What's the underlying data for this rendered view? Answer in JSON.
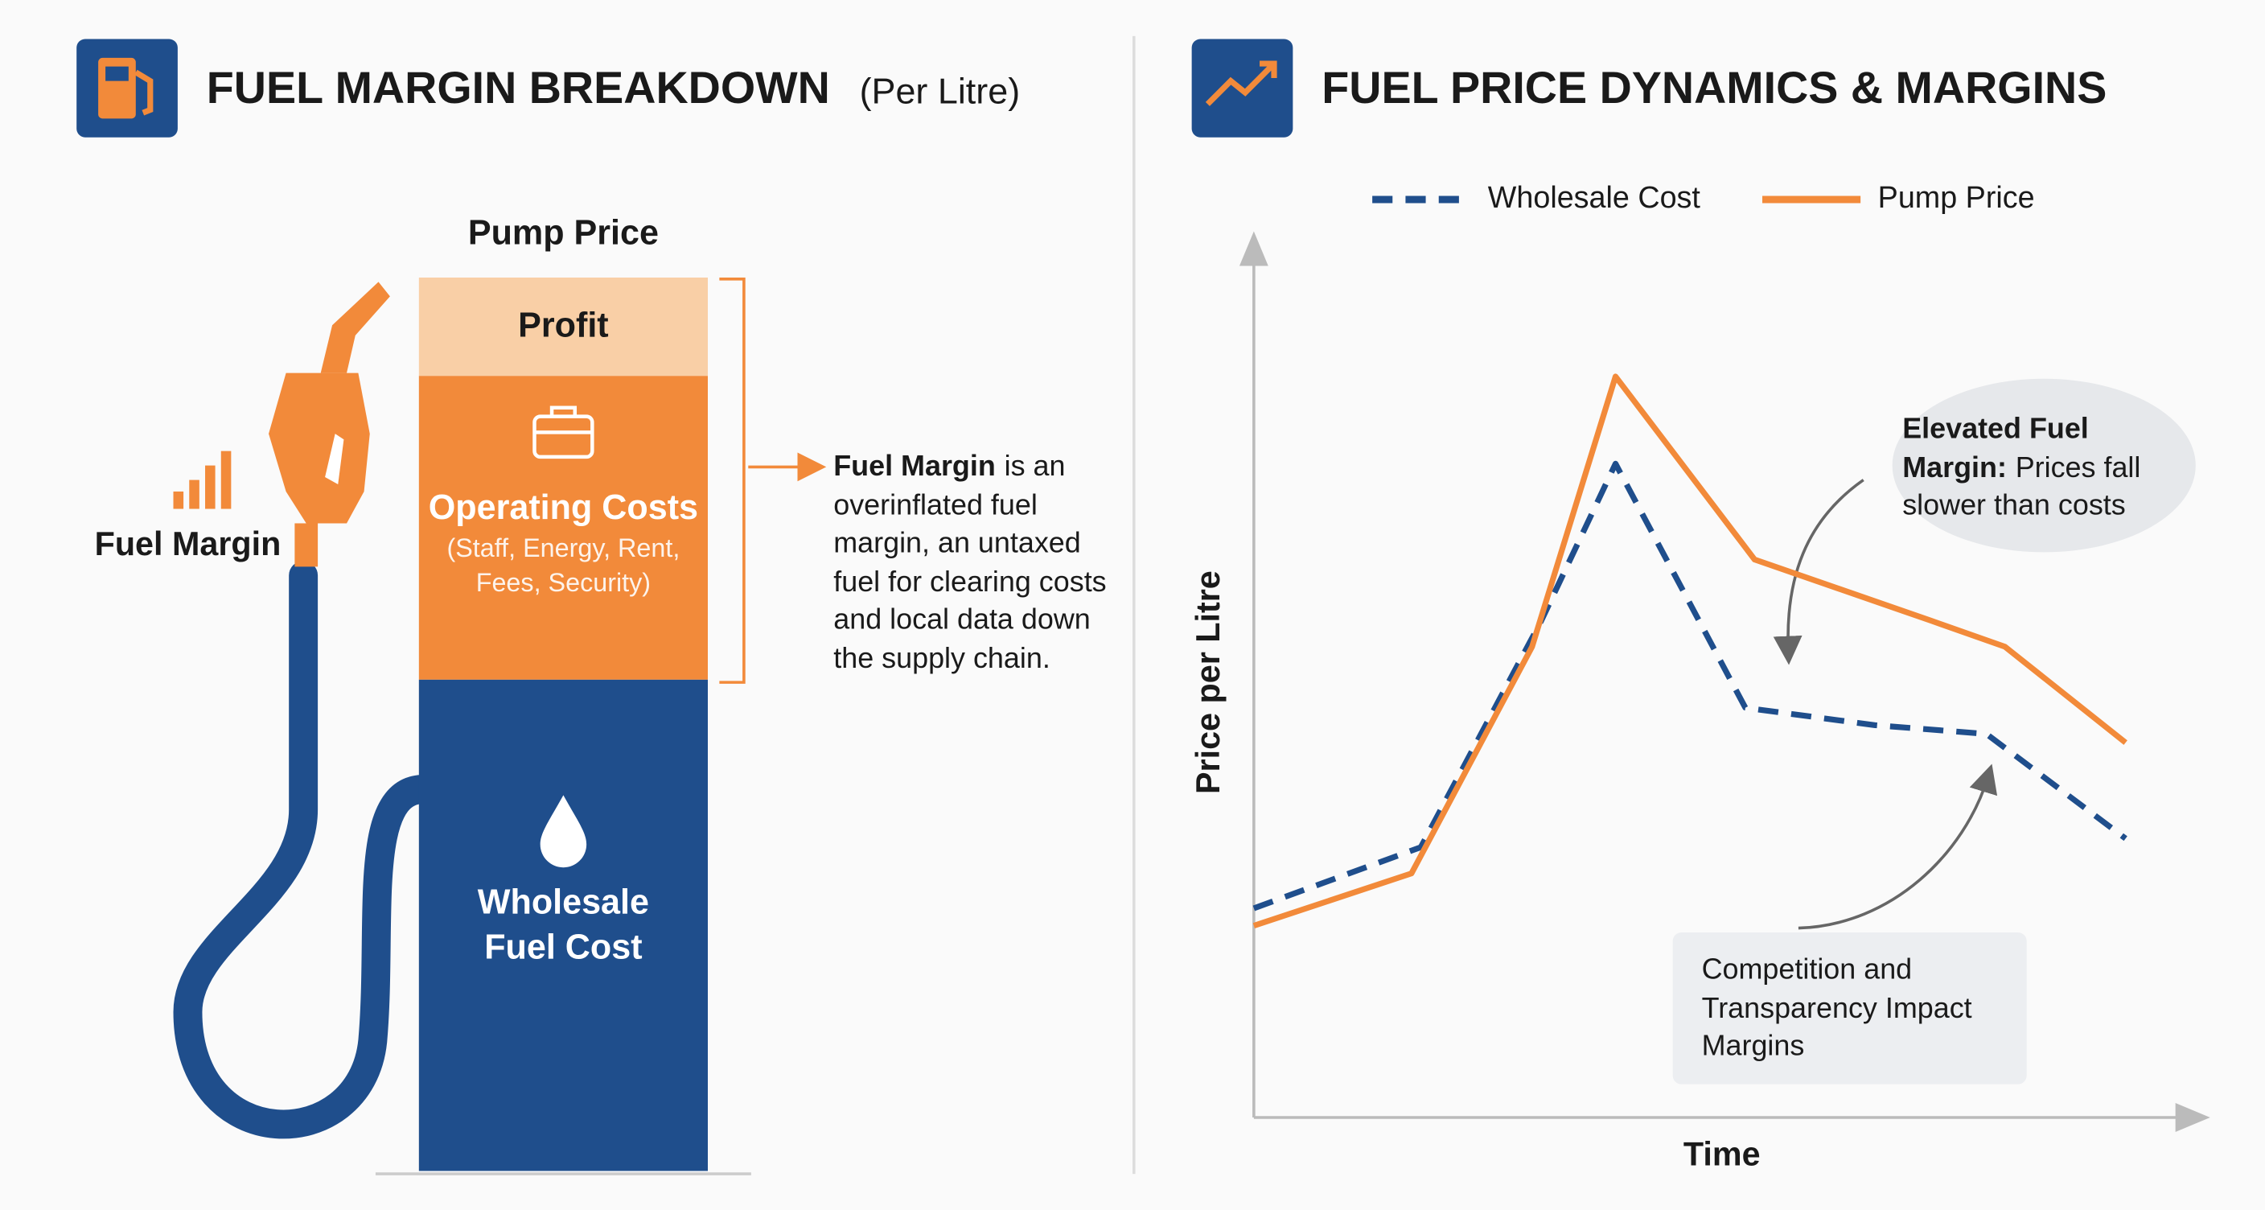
{
  "chart_data": [
    {
      "type": "stacked_bar",
      "title": "FUEL MARGIN BREAKDOWN",
      "subtitle": "(Per Litre)",
      "categories": [
        "Pump Price"
      ],
      "ylim": [
        0,
        100
      ],
      "series": [
        {
          "name": "Wholesale Fuel Cost",
          "color": "#1f4e8c",
          "text_color": "#ffffff",
          "values": [
            55
          ]
        },
        {
          "name": "Operating Costs",
          "detail": "(Staff, Energy, Rent, Fees, Security)",
          "color": "#f28a3a",
          "text_color": "#ffffff",
          "values": [
            34
          ]
        },
        {
          "name": "Profit",
          "color": "#f9cfa6",
          "text_color": "#1a1a1a",
          "values": [
            11
          ]
        }
      ],
      "side_label": "Fuel Margin",
      "note": {
        "bold": "Fuel Margin",
        "text": "is an overinflated fuel margin, an untaxed fuel for clearing costs and local data down the supply chain."
      }
    },
    {
      "type": "line",
      "title": "FUEL PRICE DYNAMICS & MARGINS",
      "xlabel": "Time",
      "ylabel": "Price per Litre",
      "xlim": [
        0,
        100
      ],
      "ylim": [
        0,
        100
      ],
      "series": [
        {
          "name": "Wholesale Cost",
          "color": "#1f4e8c",
          "dashed": true,
          "x": [
            0,
            18,
            31,
            39,
            53,
            67,
            79,
            94
          ],
          "values": [
            24,
            31,
            57,
            75,
            47,
            45,
            44,
            32
          ]
        },
        {
          "name": "Pump Price",
          "color": "#f28a3a",
          "dashed": false,
          "x": [
            0,
            17,
            30,
            39,
            54,
            73,
            81,
            94
          ],
          "values": [
            22,
            28,
            54,
            85,
            64,
            57,
            54,
            43
          ]
        }
      ],
      "annotations": [
        {
          "bold": "Elevated Fuel Margin:",
          "text": "Prices fall slower than costs"
        },
        {
          "text": "Competition and Transparency Impact Margins"
        }
      ]
    }
  ]
}
